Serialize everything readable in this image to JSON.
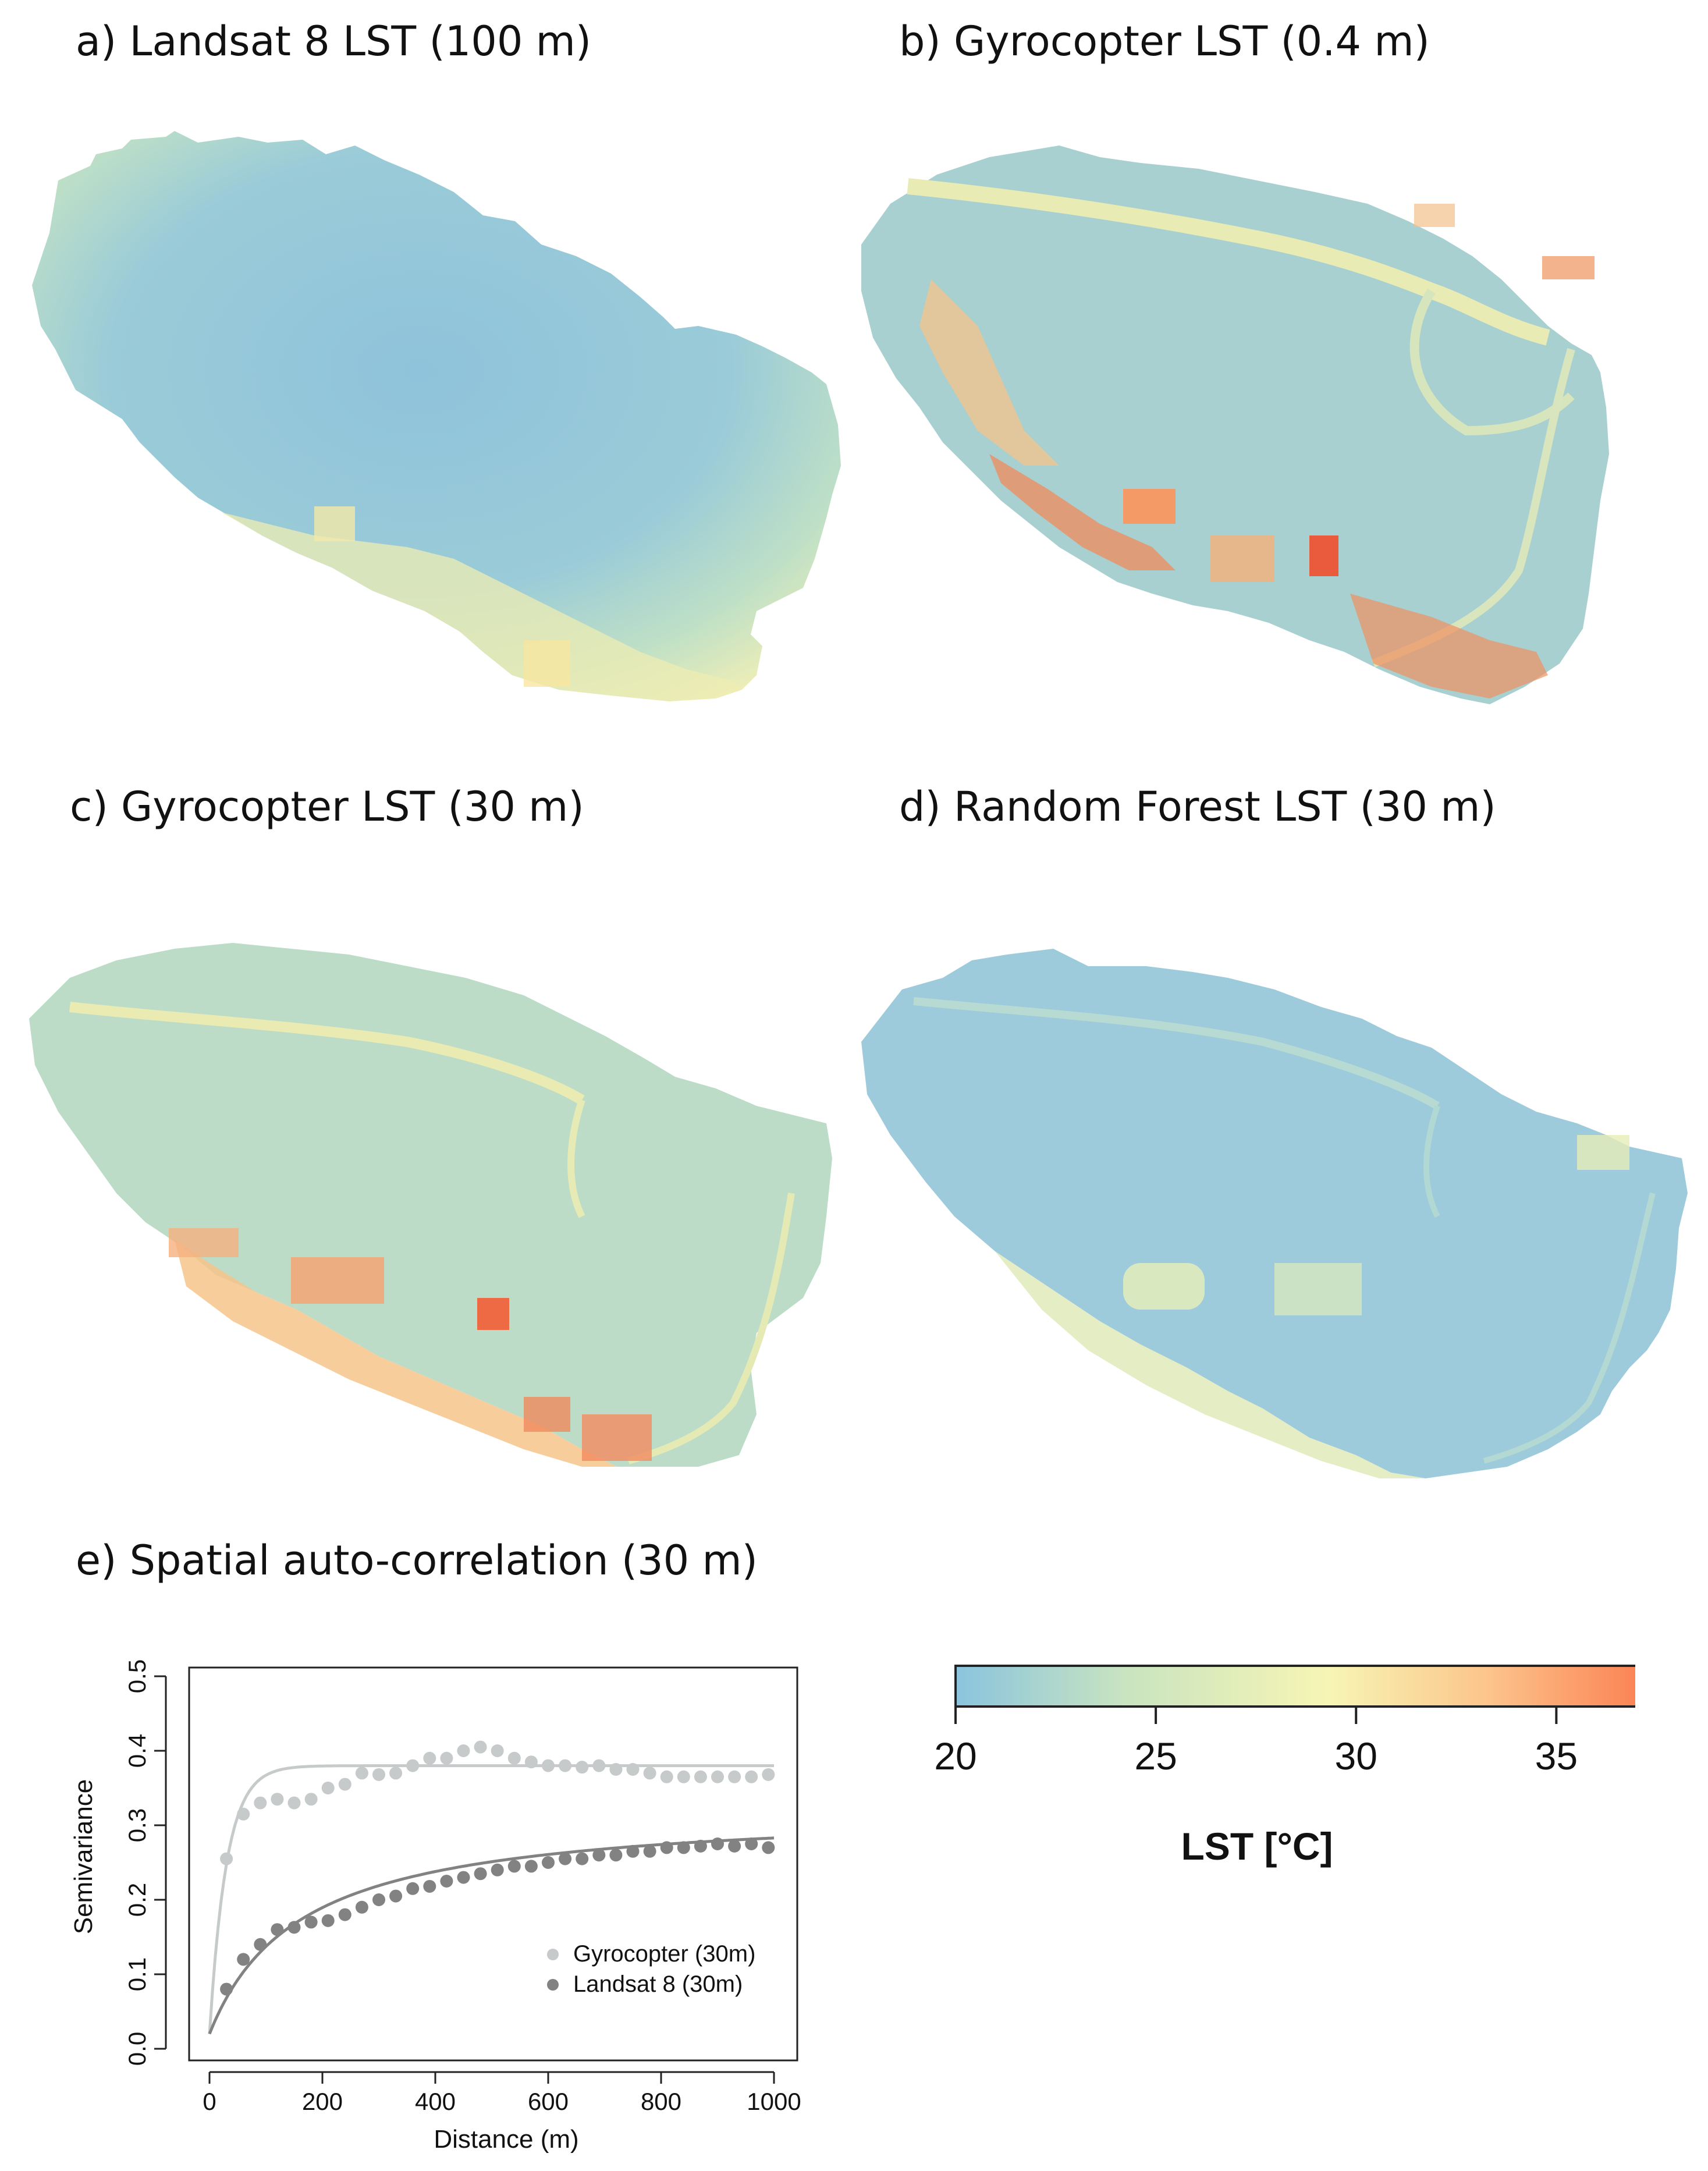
{
  "panels": {
    "a": {
      "title": "a) Landsat 8 LST (100 m)"
    },
    "b": {
      "title": "b) Gyrocopter LST (0.4 m)"
    },
    "c": {
      "title": "c) Gyrocopter LST (30 m)"
    },
    "d": {
      "title": "d) Random Forest LST (30 m)"
    },
    "e": {
      "title": "e) Spatial auto-correlation (30 m)"
    }
  },
  "colorbar": {
    "label": "LST [°C]",
    "range": [
      20,
      37
    ],
    "ticks": [
      "20",
      "25",
      "30",
      "35"
    ],
    "tick_values": [
      20,
      25,
      30,
      35
    ],
    "colors": [
      "#8ac4de",
      "#c9e4c0",
      "#f7f5b4",
      "#fcc58c",
      "#fb8455"
    ]
  },
  "chart_data": {
    "type": "scatter",
    "title": "e) Spatial auto-correlation (30 m)",
    "xlabel": "Distance (m)",
    "ylabel": "Semivariance",
    "xlim": [
      0,
      1000
    ],
    "ylim": [
      0,
      0.5
    ],
    "xticks": [
      "0",
      "200",
      "400",
      "600",
      "800",
      "1000"
    ],
    "xtick_values": [
      0,
      200,
      400,
      600,
      800,
      1000
    ],
    "yticks": [
      "0.0",
      "0.1",
      "0.2",
      "0.3",
      "0.4",
      "0.5"
    ],
    "ytick_values": [
      0,
      0.1,
      0.2,
      0.3,
      0.4,
      0.5
    ],
    "legend_position": "bottom-right",
    "series": [
      {
        "name": "Gyrocopter (30m)",
        "color": "#c6cacb",
        "points": [
          [
            30,
            0.255
          ],
          [
            60,
            0.315
          ],
          [
            90,
            0.33
          ],
          [
            120,
            0.335
          ],
          [
            150,
            0.33
          ],
          [
            180,
            0.335
          ],
          [
            210,
            0.35
          ],
          [
            240,
            0.355
          ],
          [
            270,
            0.37
          ],
          [
            300,
            0.368
          ],
          [
            330,
            0.37
          ],
          [
            360,
            0.38
          ],
          [
            390,
            0.39
          ],
          [
            420,
            0.39
          ],
          [
            450,
            0.4
          ],
          [
            480,
            0.405
          ],
          [
            510,
            0.4
          ],
          [
            540,
            0.39
          ],
          [
            570,
            0.385
          ],
          [
            600,
            0.38
          ],
          [
            630,
            0.38
          ],
          [
            660,
            0.378
          ],
          [
            690,
            0.38
          ],
          [
            720,
            0.375
          ],
          [
            750,
            0.375
          ],
          [
            780,
            0.37
          ],
          [
            810,
            0.365
          ],
          [
            840,
            0.365
          ],
          [
            870,
            0.365
          ],
          [
            900,
            0.365
          ],
          [
            930,
            0.365
          ],
          [
            960,
            0.365
          ],
          [
            990,
            0.368
          ]
        ],
        "fit": {
          "model": "exponential",
          "nugget": 0.02,
          "sill": 0.38,
          "range": 30
        }
      },
      {
        "name": "Landsat 8 (30m)",
        "color": "#828282",
        "points": [
          [
            30,
            0.08
          ],
          [
            60,
            0.12
          ],
          [
            90,
            0.14
          ],
          [
            120,
            0.16
          ],
          [
            150,
            0.163
          ],
          [
            180,
            0.17
          ],
          [
            210,
            0.172
          ],
          [
            240,
            0.18
          ],
          [
            270,
            0.19
          ],
          [
            300,
            0.2
          ],
          [
            330,
            0.205
          ],
          [
            360,
            0.215
          ],
          [
            390,
            0.218
          ],
          [
            420,
            0.225
          ],
          [
            450,
            0.23
          ],
          [
            480,
            0.235
          ],
          [
            510,
            0.24
          ],
          [
            540,
            0.245
          ],
          [
            570,
            0.245
          ],
          [
            600,
            0.25
          ],
          [
            630,
            0.255
          ],
          [
            660,
            0.255
          ],
          [
            690,
            0.26
          ],
          [
            720,
            0.26
          ],
          [
            750,
            0.265
          ],
          [
            780,
            0.265
          ],
          [
            810,
            0.27
          ],
          [
            840,
            0.27
          ],
          [
            870,
            0.272
          ],
          [
            900,
            0.275
          ],
          [
            930,
            0.272
          ],
          [
            960,
            0.275
          ],
          [
            990,
            0.27
          ]
        ],
        "fit": {
          "model": "hyperbolic",
          "nugget": 0.02,
          "sill": 0.325,
          "scale": 160
        }
      }
    ]
  }
}
